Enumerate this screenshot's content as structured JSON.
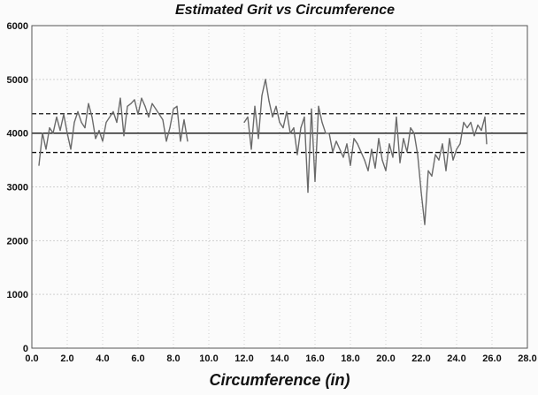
{
  "chart_data": {
    "type": "line",
    "title": "Estimated Grit vs Circumference",
    "xlabel": "Circumference (in)",
    "ylabel": "",
    "xlim": [
      0,
      28
    ],
    "ylim": [
      0,
      6000
    ],
    "x_ticks": [
      "0.0",
      "2.0",
      "4.0",
      "6.0",
      "8.0",
      "10.0",
      "12.0",
      "14.0",
      "16.0",
      "18.0",
      "20.0",
      "22.0",
      "24.0",
      "26.0",
      "28.0"
    ],
    "y_ticks": [
      "0",
      "1000",
      "2000",
      "3000",
      "4000",
      "5000",
      "6000"
    ],
    "grid": true,
    "reference_lines": [
      {
        "style": "solid",
        "value": 4000
      },
      {
        "style": "dashed",
        "value": 4360
      },
      {
        "style": "dashed",
        "value": 3640
      }
    ],
    "series": [
      {
        "color": "#6a6a6a",
        "segments": [
          {
            "x": [
              0.4,
              0.6,
              0.8,
              1.0,
              1.2,
              1.4,
              1.6,
              1.8,
              2.0,
              2.2,
              2.4,
              2.6,
              2.8,
              3.0,
              3.2,
              3.4,
              3.6,
              3.8,
              4.0,
              4.2,
              4.4,
              4.6,
              4.8,
              5.0,
              5.2,
              5.4,
              5.6,
              5.8,
              6.0,
              6.2,
              6.4,
              6.6,
              6.8,
              7.0,
              7.2,
              7.4,
              7.6,
              7.8,
              8.0,
              8.2,
              8.4,
              8.6,
              8.8
            ],
            "y": [
              3400,
              4000,
              3700,
              4100,
              4000,
              4300,
              4050,
              4350,
              4000,
              3700,
              4200,
              4400,
              4200,
              4100,
              4550,
              4300,
              3900,
              4050,
              3850,
              4200,
              4300,
              4400,
              4200,
              4650,
              3950,
              4500,
              4550,
              4620,
              4350,
              4650,
              4500,
              4300,
              4550,
              4450,
              4350,
              4250,
              3850,
              4100,
              4450,
              4500,
              3850,
              4250,
              3850
            ]
          },
          {
            "x": [
              12.0,
              12.2,
              12.4,
              12.6,
              12.8,
              13.0,
              13.2,
              13.4,
              13.6,
              13.8,
              14.0,
              14.2,
              14.4,
              14.6,
              14.8,
              15.0,
              15.2,
              15.4,
              15.6,
              15.8,
              16.0,
              16.2,
              16.4,
              16.6,
              16.8,
              17.0,
              17.2,
              17.4,
              17.6,
              17.8,
              18.0,
              18.2,
              18.4,
              18.6,
              18.8,
              19.0,
              19.2,
              19.4,
              19.6,
              19.8,
              20.0,
              20.2,
              20.4,
              20.6,
              20.8,
              21.0,
              21.2,
              21.4,
              21.6,
              21.8,
              22.0,
              22.2,
              22.4,
              22.6,
              22.8,
              23.0,
              23.2,
              23.4,
              23.6,
              23.8,
              24.0,
              24.2,
              24.4,
              24.6,
              24.8,
              25.0,
              25.2,
              25.4,
              25.6,
              25.7
            ],
            "y": [
              4200,
              4300,
              3700,
              4500,
              3900,
              4700,
              5000,
              4600,
              4300,
              4500,
              4200,
              4100,
              4400,
              4000,
              4100,
              3600,
              4100,
              4300,
              2900,
              4450,
              3100,
              4500,
              4200,
              4000,
              4000,
              3650,
              3850,
              3700,
              3550,
              3800,
              3400,
              3900,
              3800,
              3650,
              3500,
              3300,
              3700,
              3350,
              3900,
              3500,
              3300,
              3800,
              3550,
              4300,
              3450,
              3900,
              3650,
              4100,
              4000,
              3600,
              2900,
              2300,
              3300,
              3200,
              3600,
              3500,
              3800,
              3300,
              3900,
              3500,
              3700,
              3800,
              4200,
              4100,
              4200,
              3950,
              4150,
              4050,
              4300,
              3800
            ]
          }
        ]
      }
    ]
  }
}
